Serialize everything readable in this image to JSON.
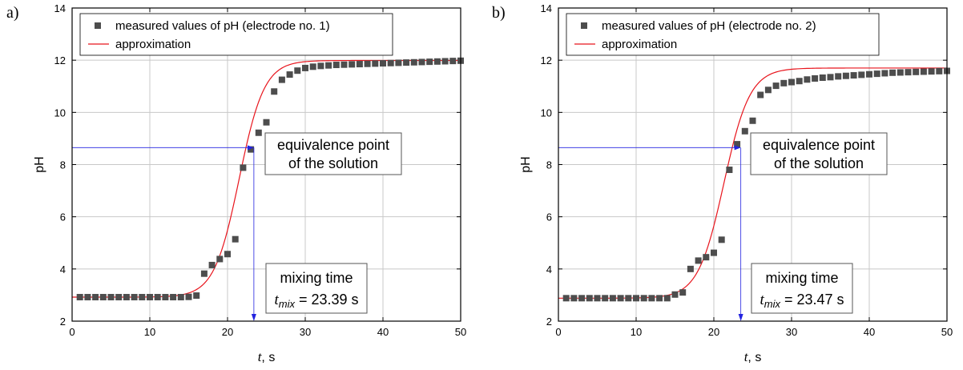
{
  "chart_data": [
    {
      "type": "scatter",
      "panel_label": "a)",
      "xlabel": "t",
      "xlabel_unit": ", s",
      "ylabel": "pH",
      "xlim": [
        0,
        50
      ],
      "ylim": [
        2,
        14
      ],
      "x_ticks": [
        0,
        10,
        20,
        30,
        40,
        50
      ],
      "y_ticks": [
        2,
        4,
        6,
        8,
        10,
        12,
        14
      ],
      "grid": true,
      "legend_position": "top-left",
      "series": [
        {
          "name": "measured values of pH (electrode no. 1)",
          "kind": "markers",
          "color": "#4d4d4d",
          "x": [
            1,
            2,
            3,
            4,
            5,
            6,
            7,
            8,
            9,
            10,
            11,
            12,
            13,
            14,
            15,
            16,
            17,
            18,
            19,
            20,
            21,
            22,
            23,
            24,
            25,
            26,
            27,
            28,
            29,
            30,
            31,
            32,
            33,
            34,
            35,
            36,
            37,
            38,
            39,
            40,
            41,
            42,
            43,
            44,
            45,
            46,
            47,
            48,
            49,
            50
          ],
          "y": [
            2.92,
            2.92,
            2.92,
            2.92,
            2.92,
            2.92,
            2.92,
            2.92,
            2.92,
            2.92,
            2.92,
            2.92,
            2.92,
            2.92,
            2.93,
            2.98,
            3.82,
            4.15,
            4.38,
            4.57,
            5.14,
            7.88,
            8.58,
            9.22,
            9.62,
            10.8,
            11.25,
            11.45,
            11.6,
            11.7,
            11.75,
            11.78,
            11.8,
            11.82,
            11.83,
            11.84,
            11.85,
            11.86,
            11.87,
            11.88,
            11.89,
            11.9,
            11.91,
            11.92,
            11.93,
            11.94,
            11.95,
            11.96,
            11.97,
            11.98
          ]
        },
        {
          "name": "approximation",
          "kind": "line",
          "color": "#e8141c",
          "model": {
            "low": 2.92,
            "high": 11.99,
            "x0": 21.5,
            "k": 0.62
          }
        }
      ],
      "equivalence_point": {
        "x": 23.39,
        "y": 8.65
      },
      "annotation_equivalence": [
        "equivalence point",
        "of the solution"
      ],
      "annotation_mixing": {
        "line1": "mixing time",
        "t_sym": "t",
        "sub": "mix",
        "value": " = 23.39 s"
      }
    },
    {
      "type": "scatter",
      "panel_label": "b)",
      "xlabel": "t",
      "xlabel_unit": ", s",
      "ylabel": "pH",
      "xlim": [
        0,
        50
      ],
      "ylim": [
        2,
        14
      ],
      "x_ticks": [
        0,
        10,
        20,
        30,
        40,
        50
      ],
      "y_ticks": [
        2,
        4,
        6,
        8,
        10,
        12,
        14
      ],
      "grid": true,
      "legend_position": "top-left",
      "series": [
        {
          "name": "measured values of pH (electrode no. 2)",
          "kind": "markers",
          "color": "#4d4d4d",
          "x": [
            1,
            2,
            3,
            4,
            5,
            6,
            7,
            8,
            9,
            10,
            11,
            12,
            13,
            14,
            15,
            16,
            17,
            18,
            19,
            20,
            21,
            22,
            23,
            24,
            25,
            26,
            27,
            28,
            29,
            30,
            31,
            32,
            33,
            34,
            35,
            36,
            37,
            38,
            39,
            40,
            41,
            42,
            43,
            44,
            45,
            46,
            47,
            48,
            49,
            50
          ],
          "y": [
            2.88,
            2.88,
            2.88,
            2.88,
            2.88,
            2.88,
            2.88,
            2.88,
            2.88,
            2.88,
            2.88,
            2.88,
            2.88,
            2.88,
            3.02,
            3.1,
            4.0,
            4.32,
            4.45,
            4.62,
            5.12,
            7.8,
            8.78,
            9.28,
            9.68,
            10.67,
            10.86,
            11.02,
            11.12,
            11.16,
            11.2,
            11.26,
            11.3,
            11.33,
            11.35,
            11.38,
            11.4,
            11.42,
            11.44,
            11.46,
            11.48,
            11.5,
            11.52,
            11.53,
            11.54,
            11.55,
            11.56,
            11.57,
            11.58,
            11.59
          ]
        },
        {
          "name": "approximation",
          "kind": "line",
          "color": "#e8141c",
          "model": {
            "low": 2.88,
            "high": 11.7,
            "x0": 21.3,
            "k": 0.6
          }
        }
      ],
      "equivalence_point": {
        "x": 23.47,
        "y": 8.65
      },
      "annotation_equivalence": [
        "equivalence point",
        "of the solution"
      ],
      "annotation_mixing": {
        "line1": "mixing time",
        "t_sym": "t",
        "sub": "mix",
        "value": " = 23.47 s"
      }
    }
  ]
}
